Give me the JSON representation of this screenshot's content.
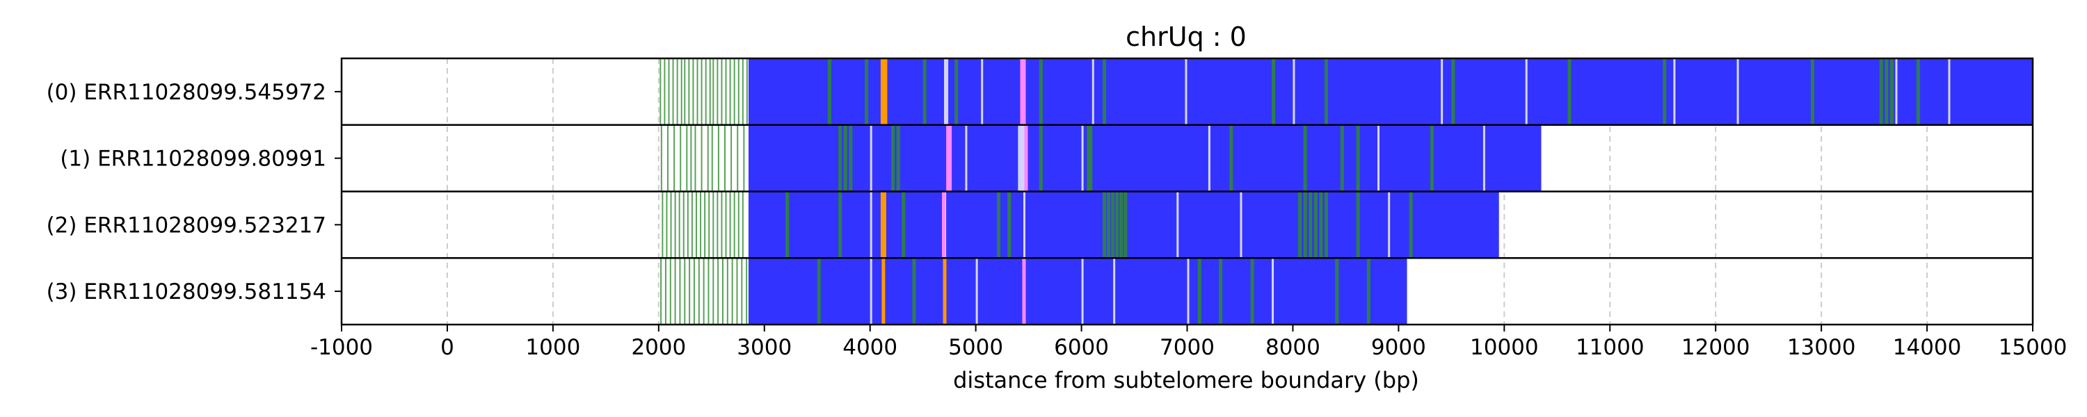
{
  "chart_data": {
    "type": "bar",
    "title": "chrUq : 0",
    "xlabel": "distance from subtelomere boundary (bp)",
    "ylabel": "",
    "xlim": [
      -1000,
      15000
    ],
    "xticks": [
      -1000,
      0,
      1000,
      2000,
      3000,
      4000,
      5000,
      6000,
      7000,
      8000,
      9000,
      10000,
      11000,
      12000,
      13000,
      14000,
      15000
    ],
    "xtick_labels": [
      "-1000",
      "0",
      "1000",
      "2000",
      "3000",
      "4000",
      "5000",
      "6000",
      "7000",
      "8000",
      "9000",
      "10000",
      "11000",
      "12000",
      "13000",
      "14000",
      "15000"
    ],
    "grid": "vertical dashed",
    "colors": {
      "repeat_block": "#3333ff",
      "variant_green": "#2e8b2e",
      "variant_orange": "#ff9900",
      "variant_pink": "#ff88ff",
      "variant_white": "#ffffff",
      "grid": "#cccccc"
    },
    "reads": [
      {
        "label": "(0) ERR11028099.545972",
        "sparse_start": 2000,
        "block_start": 2850,
        "end": 15000,
        "green_marks": [
          2010,
          2050,
          2090,
          2130,
          2170,
          2210,
          2240,
          2280,
          2320,
          2360,
          2400,
          2440,
          2480,
          2510,
          2550,
          2590,
          2630,
          2670,
          2710,
          2750,
          2790,
          2830,
          3600,
          3950,
          4500,
          4800,
          5600,
          6200,
          7800,
          8300,
          9500,
          10600,
          11500,
          12900,
          13550,
          13600,
          13650,
          13900
        ],
        "orange_marks": [
          4100,
          4130
        ],
        "pink_marks": [
          5420,
          5440
        ],
        "white_marks": [
          4700,
          4720,
          5050,
          6100,
          6980,
          8000,
          9400,
          10200,
          11600,
          12200,
          13700,
          14200
        ]
      },
      {
        "label": "(1) ERR11028099.80991",
        "sparse_start": 2000,
        "block_start": 2850,
        "end": 10350,
        "green_marks": [
          2020,
          2080,
          2140,
          2200,
          2260,
          2300,
          2340,
          2400,
          2460,
          2500,
          2560,
          2620,
          2680,
          2740,
          2800,
          3700,
          3750,
          3800,
          4200,
          4250,
          5600,
          6050,
          6070,
          7400,
          8100,
          8450,
          8600,
          9300
        ],
        "orange_marks": [],
        "pink_marks": [
          4720,
          4740,
          5460
        ],
        "white_marks": [
          4000,
          4900,
          5400,
          5420,
          5440,
          6000,
          7200,
          8800,
          9800
        ]
      },
      {
        "label": "(2) ERR11028099.523217",
        "sparse_start": 2000,
        "block_start": 2850,
        "end": 9950,
        "green_marks": [
          2030,
          2070,
          2110,
          2150,
          2190,
          2230,
          2270,
          2310,
          2350,
          2390,
          2430,
          2470,
          2510,
          2550,
          2590,
          2630,
          2670,
          2710,
          2750,
          2790,
          3200,
          3700,
          4300,
          5200,
          5300,
          6200,
          6240,
          6280,
          6320,
          6360,
          6400,
          8050,
          8100,
          8150,
          8200,
          8250,
          8300,
          8600,
          9100
        ],
        "orange_marks": [
          4100,
          4120
        ],
        "pink_marks": [
          4680
        ],
        "white_marks": [
          4000,
          4700,
          5450,
          6900,
          7500,
          8900
        ]
      },
      {
        "label": "(3) ERR11028099.581154",
        "sparse_start": 2000,
        "block_start": 2850,
        "end": 9080,
        "green_marks": [
          2015,
          2060,
          2105,
          2150,
          2195,
          2240,
          2285,
          2330,
          2375,
          2420,
          2465,
          2510,
          2555,
          2600,
          2645,
          2690,
          2735,
          2780,
          2825,
          3500,
          4400,
          7100,
          7300,
          7600,
          8400,
          8700
        ],
        "orange_marks": [
          4110,
          4690
        ],
        "pink_marks": [
          5440
        ],
        "white_marks": [
          4000,
          5000,
          6000,
          6300,
          7000,
          7800
        ]
      }
    ]
  }
}
